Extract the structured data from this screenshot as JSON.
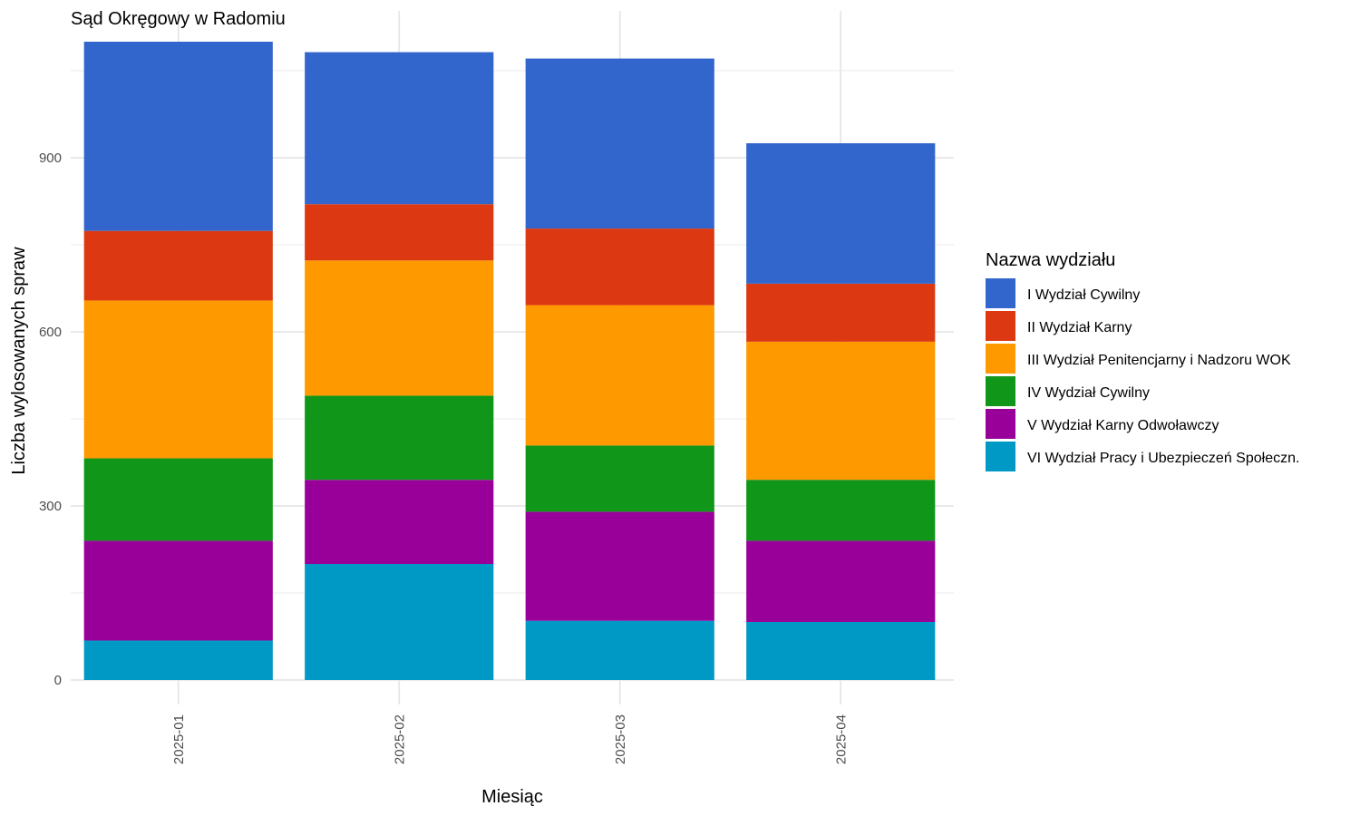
{
  "chart_data": {
    "type": "bar",
    "stacked": true,
    "title": "Sąd Okręgowy w Radomiu",
    "xlabel": "Miesiąc",
    "ylabel": "Liczba wylosowanych spraw",
    "categories": [
      "2025-01",
      "2025-02",
      "2025-03",
      "2025-04"
    ],
    "ylim": [
      0,
      1150
    ],
    "yticks": [
      0,
      300,
      600,
      900
    ],
    "grid": true,
    "x_tick_rotation": "vertical",
    "legend": {
      "title": "Nazwa wydziału",
      "position": "right"
    },
    "series": [
      {
        "name": "VI Wydział Pracy i Ubezpieczeń Społeczn.",
        "color": "#0099C6",
        "values": [
          68,
          200,
          102,
          100
        ]
      },
      {
        "name": "V Wydział Karny Odwoławczy",
        "color": "#990099",
        "values": [
          172,
          145,
          188,
          140
        ]
      },
      {
        "name": "IV Wydział Cywilny",
        "color": "#109618",
        "values": [
          142,
          145,
          114,
          105
        ]
      },
      {
        "name": "III Wydział Penitencjarny i Nadzoru WOK",
        "color": "#FF9900",
        "values": [
          272,
          233,
          242,
          238
        ]
      },
      {
        "name": "II Wydział Karny",
        "color": "#DC3912",
        "values": [
          120,
          97,
          132,
          100
        ]
      },
      {
        "name": "I Wydział Cywilny",
        "color": "#3366CC",
        "values": [
          326,
          262,
          293,
          242
        ]
      }
    ],
    "legend_order": [
      "I Wydział Cywilny",
      "II Wydział Karny",
      "III Wydział Penitencjarny i Nadzoru WOK",
      "IV Wydział Cywilny",
      "V Wydział Karny Odwoławczy",
      "VI Wydział Pracy i Ubezpieczeń Społeczn."
    ]
  }
}
